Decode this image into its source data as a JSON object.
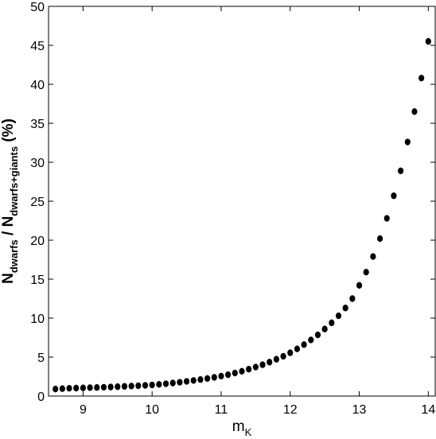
{
  "chart_data": {
    "type": "scatter",
    "title": "",
    "xlabel": {
      "main": "m",
      "sub": "K"
    },
    "ylabel": {
      "main": "N",
      "sub1": "dwarfs",
      "mid": " / N",
      "sub2": "dwarfs+giants",
      "suffix": " (%)"
    },
    "xlim": [
      8.5,
      14.1
    ],
    "ylim": [
      0,
      50
    ],
    "xticks": [
      "9",
      "10",
      "11",
      "12",
      "13",
      "14"
    ],
    "yticks": [
      "0",
      "5",
      "10",
      "15",
      "20",
      "25",
      "30",
      "35",
      "40",
      "45",
      "50"
    ],
    "grid": false,
    "marker_color": "#000000",
    "points": [
      [
        8.6,
        0.9
      ],
      [
        8.7,
        0.95
      ],
      [
        8.8,
        1.0
      ],
      [
        8.9,
        1.02
      ],
      [
        9.0,
        1.05
      ],
      [
        9.1,
        1.08
      ],
      [
        9.2,
        1.1
      ],
      [
        9.3,
        1.13
      ],
      [
        9.4,
        1.16
      ],
      [
        9.5,
        1.2
      ],
      [
        9.6,
        1.24
      ],
      [
        9.7,
        1.28
      ],
      [
        9.8,
        1.32
      ],
      [
        9.9,
        1.37
      ],
      [
        10.0,
        1.42
      ],
      [
        10.1,
        1.5
      ],
      [
        10.2,
        1.58
      ],
      [
        10.3,
        1.67
      ],
      [
        10.4,
        1.77
      ],
      [
        10.5,
        1.88
      ],
      [
        10.6,
        2.0
      ],
      [
        10.7,
        2.12
      ],
      [
        10.8,
        2.25
      ],
      [
        10.9,
        2.4
      ],
      [
        11.0,
        2.56
      ],
      [
        11.1,
        2.74
      ],
      [
        11.2,
        2.95
      ],
      [
        11.3,
        3.18
      ],
      [
        11.4,
        3.45
      ],
      [
        11.5,
        3.72
      ],
      [
        11.6,
        4.02
      ],
      [
        11.7,
        4.35
      ],
      [
        11.8,
        4.72
      ],
      [
        11.9,
        5.1
      ],
      [
        12.0,
        5.55
      ],
      [
        12.1,
        6.05
      ],
      [
        12.2,
        6.6
      ],
      [
        12.3,
        7.2
      ],
      [
        12.4,
        7.85
      ],
      [
        12.5,
        8.6
      ],
      [
        12.6,
        9.4
      ],
      [
        12.7,
        10.3
      ],
      [
        12.8,
        11.3
      ],
      [
        12.9,
        12.5
      ],
      [
        13.0,
        14.2
      ],
      [
        13.1,
        15.9
      ],
      [
        13.2,
        17.9
      ],
      [
        13.3,
        20.2
      ],
      [
        13.4,
        22.8
      ],
      [
        13.5,
        25.7
      ],
      [
        13.6,
        28.9
      ],
      [
        13.7,
        32.6
      ],
      [
        13.8,
        36.5
      ],
      [
        13.9,
        40.8
      ],
      [
        14.0,
        45.5
      ]
    ]
  }
}
